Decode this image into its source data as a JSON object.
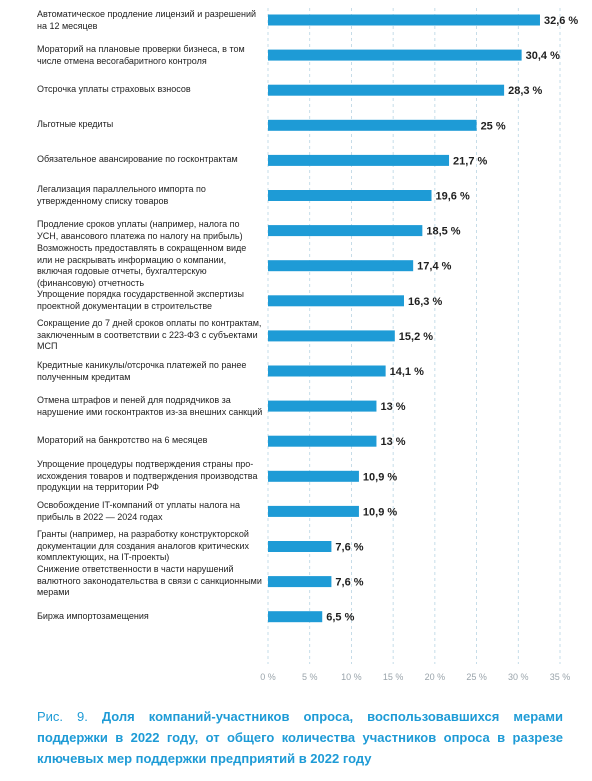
{
  "chart_data": {
    "type": "bar",
    "orientation": "horizontal",
    "categories": [
      "Автоматическое продление лицензий и разрешений на 12 месяцев",
      "Мораторий на плановые проверки бизнеса, в том числе отмена весогабаритного контроля",
      "Отсрочка уплаты страховых взносов",
      "Льготные кредиты",
      "Обязательное авансирование по госконтрактам",
      "Легализация параллельного импорта по утвержденному списку товаров",
      "Продление сроков уплаты (например, налога по УСН, авансового платежа по налогу на прибыль)",
      "Возможность предоставлять в сокращенном виде или не раскрывать информацию о компании, включая годовые отчеты, бухгалтерскую (финансовую) отчетность",
      "Упрощение порядка государственной экспертизы проектной документации в строительстве",
      "Сокращение до 7 дней сроков оплаты по контрактам, заключенным в соответствии с 223-ФЗ с субъектами МСП",
      "Кредитные каникулы/отсрочка платежей по ранее полученным кредитам",
      "Отмена штрафов и пеней для подрядчиков за нарушение ими госконтрактов из-за внешних санкций",
      "Мораторий на банкротство на 6 месяцев",
      "Упрощение процедуры подтверждения страны про-исхождения товаров и подтверждения производства продукции на территории РФ",
      "Освобождение IT-компаний от уплаты налога на прибыль в 2022 — 2024 годах",
      "Гранты (например, на разработку конструкторской документации для создания аналогов критических комплектующих, на IT-проекты)",
      "Снижение ответственности в части нарушений валютного законодательства в связи с санкционными мерами",
      "Биржа импортозамещения"
    ],
    "values": [
      32.6,
      30.4,
      28.3,
      25,
      21.7,
      19.6,
      18.5,
      17.4,
      16.3,
      15.2,
      14.1,
      13,
      13,
      10.9,
      10.9,
      7.6,
      7.6,
      6.5
    ],
    "value_labels": [
      "32,6 %",
      "30,4 %",
      "28,3 %",
      "25 %",
      "21,7 %",
      "19,6 %",
      "18,5 %",
      "17,4 %",
      "16,3 %",
      "15,2 %",
      "14,1 %",
      "13 %",
      "13 %",
      "10,9 %",
      "10,9 %",
      "7,6 %",
      "7,6 %",
      "6,5 %"
    ],
    "xlim": [
      0,
      35
    ],
    "xticks": [
      0,
      5,
      10,
      15,
      20,
      25,
      30,
      35
    ],
    "xtick_labels": [
      "0 %",
      "5 %",
      "10 %",
      "15 %",
      "20 %",
      "25 %",
      "30 %",
      "35 %"
    ],
    "grid": "vertical dashed",
    "bar_color": "#1e9bd6"
  },
  "caption": {
    "prefix": "Рис. 9.",
    "text": "Доля компаний-участников опроса, воспользовавшихся мерами поддержки в 2022 году, от общего количества участников опроса в разрезе ключевых мер поддержки предприятий в 2022 году"
  },
  "colors": {
    "accent": "#1e9bd6",
    "grid": "#b8d4e3",
    "text": "#1f1f1f",
    "tick": "#9aa4ab"
  }
}
